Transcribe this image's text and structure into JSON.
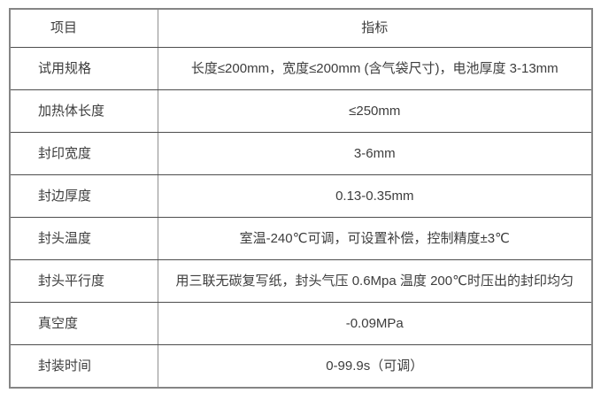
{
  "colors": {
    "text": "#3d3d3d",
    "border_outer": "#858585",
    "border_horizontal": "#4d4d4d",
    "border_vertical": "#8f8f8f"
  },
  "table": {
    "header": {
      "item": "项目",
      "indicator": "指标"
    },
    "rows": [
      {
        "item": "试用规格",
        "value": "长度≤200mm，宽度≤200mm (含气袋尺寸)，电池厚度 3-13mm"
      },
      {
        "item": "加热体长度",
        "value": "≤250mm"
      },
      {
        "item": "封印宽度",
        "value": "3-6mm"
      },
      {
        "item": "封边厚度",
        "value": "0.13-0.35mm"
      },
      {
        "item": "封头温度",
        "value": "室温-240℃可调，可设置补偿，控制精度±3℃"
      },
      {
        "item": "封头平行度",
        "value": "用三联无碳复写纸，封头气压 0.6Mpa 温度 200℃时压出的封印均匀"
      },
      {
        "item": "真空度",
        "value": "-0.09MPa"
      },
      {
        "item": "封装时间",
        "value": "0-99.9s（可调）"
      }
    ]
  }
}
